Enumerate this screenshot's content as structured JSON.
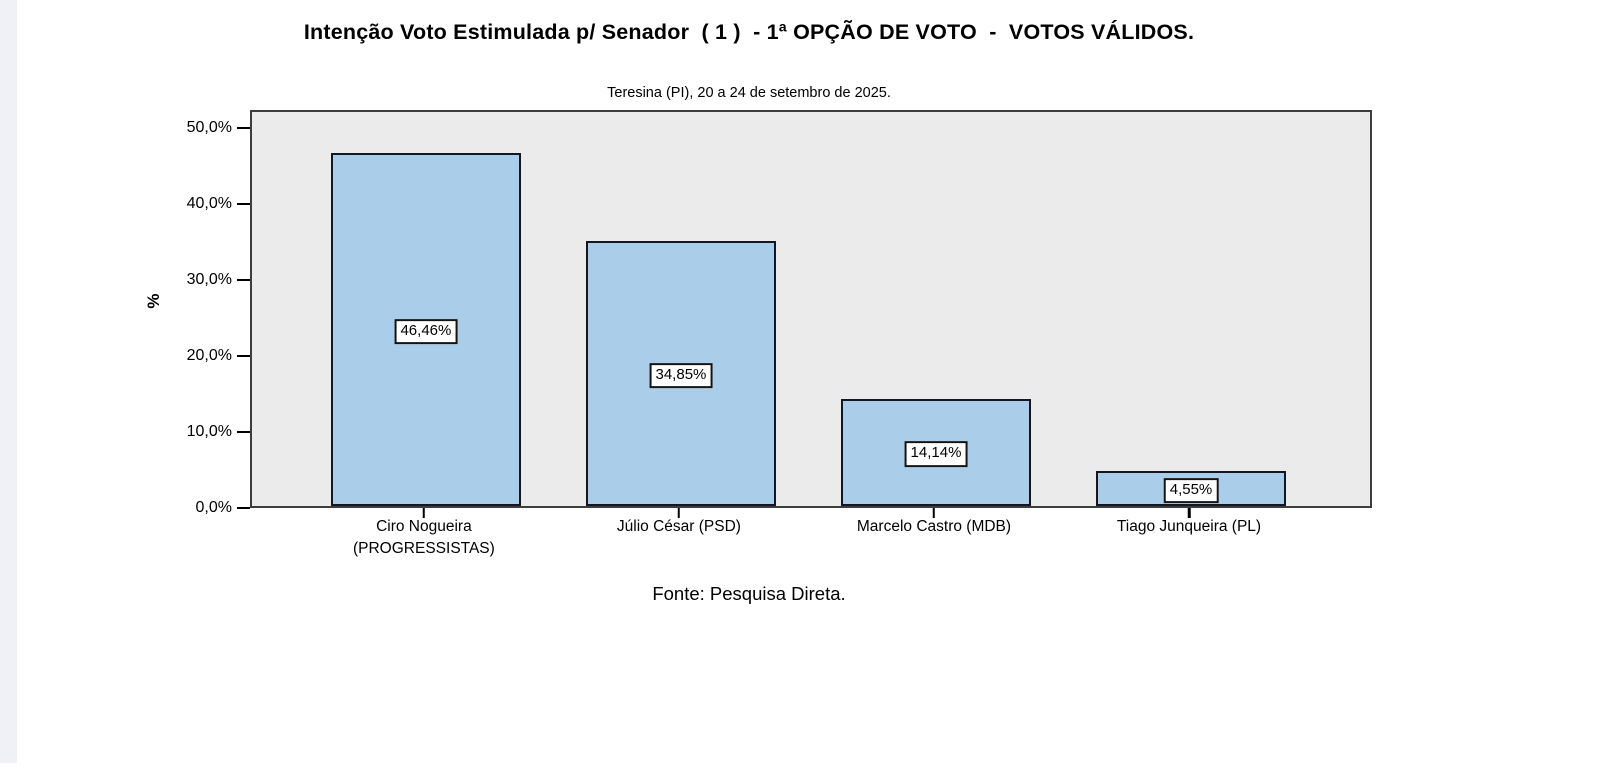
{
  "page": {
    "background": "#ffffff",
    "left_strip_color": "#f0f1f7"
  },
  "chart_data": {
    "type": "bar",
    "title": "Intenção Voto Estimulada p/ Senador  ( 1 )  - 1ª OPÇÃO DE VOTO  -  VOTOS VÁLIDOS.",
    "subtitle": "Teresina (PI), 20 a 24 de setembro de 2025.",
    "source": "Fonte: Pesquisa Direta.",
    "categories": [
      "Ciro Nogueira\n(PROGRESSISTAS)",
      "Júlio César (PSD)",
      "Marcelo Castro (MDB)",
      "Tiago Junqueira (PL)"
    ],
    "values": [
      46.46,
      34.85,
      14.14,
      4.55
    ],
    "value_labels": [
      "46,46%",
      "34,85%",
      "14,14%",
      "4,55%"
    ],
    "xlabel": "",
    "ylabel": "%",
    "ytick_labels": [
      "50,0%",
      "40,0%",
      "30,0%",
      "20,0%",
      "10,0%",
      "0,0%"
    ],
    "ytick_values": [
      50,
      40,
      30,
      20,
      10,
      0
    ],
    "ylim": [
      0,
      52.4
    ],
    "grid": false,
    "legend": "none",
    "colors": {
      "bar_fill": "#aacdea",
      "bar_border": "#141622",
      "plot_background": "#ebebeb",
      "plot_border": "#3d3d3d",
      "text": "#000000",
      "value_box_background": "#ffffff"
    }
  }
}
